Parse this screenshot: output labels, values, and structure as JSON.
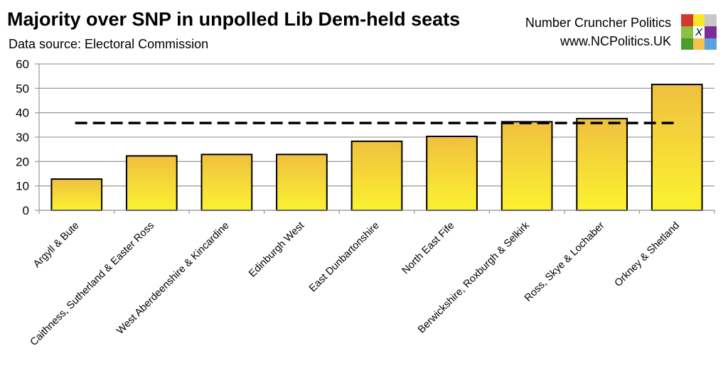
{
  "brand": {
    "name": "Number Cruncher Politics",
    "url": "www.NCPolitics.UK",
    "logo_colors": [
      "#d0392b",
      "#f7e728",
      "#c8c8c8",
      "#8cc043",
      "#ffffff",
      "#7b2d94",
      "#4b9c2e",
      "#f2c14e",
      "#5aa1e0"
    ],
    "logo_mark": "X"
  },
  "chart_data": {
    "type": "bar",
    "title": "Majority over SNP in unpolled Lib Dem-held seats",
    "subtitle": "Data source: Electoral Commission",
    "categories": [
      "Argyll & Bute",
      "Caithness, Sutherland & Easter Ross",
      "West Aberdeenshire & Kincardine",
      "Edinburgh West",
      "East Dunbartonshire",
      "North East Fife",
      "Berwickshire, Roxburgh & Selkirk",
      "Ross, Skye & Lochaber",
      "Orkney & Shetland"
    ],
    "values": [
      12.8,
      22.3,
      22.9,
      22.9,
      28.3,
      30.3,
      36.3,
      37.6,
      51.6
    ],
    "reference_line": {
      "value": 35.8,
      "style": "dashed",
      "color": "#000000"
    },
    "ylim": [
      0,
      60
    ],
    "yticks": [
      0,
      10,
      20,
      30,
      40,
      50,
      60
    ],
    "grid": true,
    "bar_color_top": "#f0c040",
    "bar_color_bottom": "#fbf230",
    "xlabel": "",
    "ylabel": ""
  }
}
